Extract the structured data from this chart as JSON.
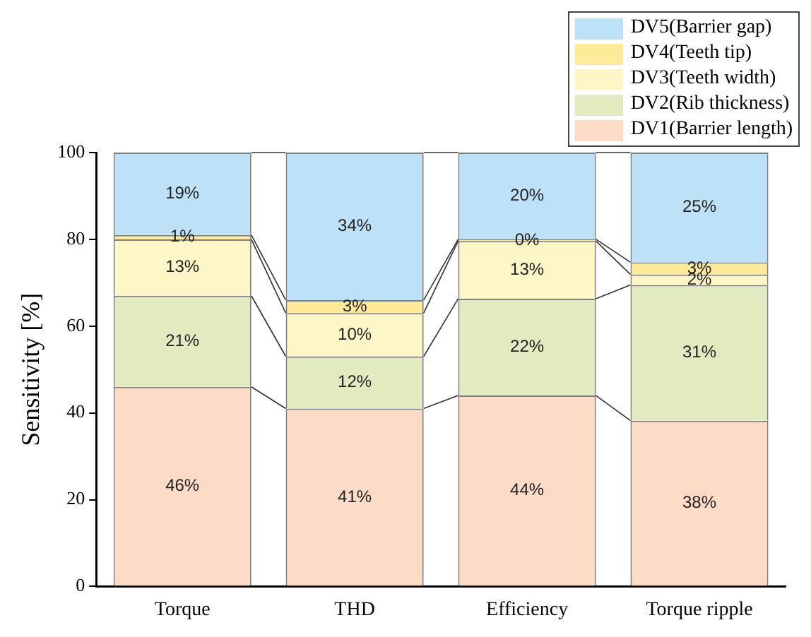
{
  "chart_data": {
    "type": "bar",
    "stacked": true,
    "ylabel": "Sensitivity [%]",
    "categories": [
      "Torque",
      "THD",
      "Efficiency",
      "Torque ripple"
    ],
    "series": [
      {
        "name": "DV1(Barrier length)",
        "color": "#fcdcc6",
        "values": [
          46,
          41,
          44,
          38.2
        ],
        "value_labels": [
          "46%",
          "41%",
          "44%",
          "38%"
        ]
      },
      {
        "name": "DV2(Rib thickness)",
        "color": "#e2ebc0",
        "values": [
          21,
          12,
          22.3,
          31.3
        ],
        "value_labels": [
          "21%",
          "12%",
          "22%",
          "31%"
        ]
      },
      {
        "name": "DV3(Teeth width)",
        "color": "#fdf6c6",
        "values": [
          13,
          10,
          13.3,
          2.4
        ],
        "value_labels": [
          "13%",
          "10%",
          "13%",
          "2%"
        ]
      },
      {
        "name": "DV4(Teeth tip)",
        "color": "#feeb9a",
        "values": [
          1,
          3,
          0.4,
          2.8
        ],
        "value_labels": [
          "1%",
          "3%",
          "0%",
          "3%"
        ]
      },
      {
        "name": "DV5(Barrier gap)",
        "color": "#bde2f7",
        "values": [
          19,
          34,
          20,
          25.3
        ],
        "value_labels": [
          "19%",
          "34%",
          "20%",
          "25%"
        ]
      }
    ],
    "ylim": [
      0,
      100
    ],
    "yticks": [
      0,
      20,
      40,
      60,
      80,
      100
    ],
    "grid": false,
    "legend": "top right"
  }
}
